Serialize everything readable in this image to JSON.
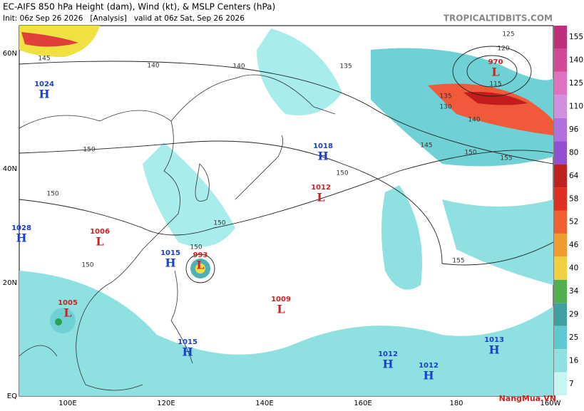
{
  "header": {
    "title": "EC-AIFS 850 hPa Height (dam), Wind (kt), & MSLP Centers (hPa)",
    "subtitle": "Init: 06z Sep 26 2026   [Analysis]   valid at 06z Sat, Sep 26 2026",
    "brand": "TROPICALTIDBITS.COM"
  },
  "lat_labels": [
    "60N",
    "40N",
    "20N",
    "EQ"
  ],
  "lon_labels": [
    "100E",
    "120E",
    "140E",
    "160E",
    "180",
    "160W"
  ],
  "colorbar_labels": [
    "155",
    "140",
    "125",
    "110",
    "96",
    "80",
    "64",
    "58",
    "52",
    "46",
    "40",
    "34",
    "29",
    "25",
    "16",
    "7"
  ],
  "contour_labels": [
    "145",
    "140",
    "140",
    "135",
    "125",
    "120",
    "115",
    "130",
    "135",
    "140",
    "145",
    "150",
    "155",
    "150",
    "150",
    "150",
    "150",
    "150",
    "155",
    "150"
  ],
  "centers": [
    {
      "pressure": "1024",
      "letter": "H"
    },
    {
      "pressure": "1028",
      "letter": "H"
    },
    {
      "pressure": "1006",
      "letter": "L"
    },
    {
      "pressure": "1015",
      "letter": "H"
    },
    {
      "pressure": "993",
      "letter": "L"
    },
    {
      "pressure": "1005",
      "letter": "L"
    },
    {
      "pressure": "1015",
      "letter": "H"
    },
    {
      "pressure": "1018",
      "letter": "H"
    },
    {
      "pressure": "1012",
      "letter": "L"
    },
    {
      "pressure": "1009",
      "letter": "L"
    },
    {
      "pressure": "1012",
      "letter": "H"
    },
    {
      "pressure": "1012",
      "letter": "H"
    },
    {
      "pressure": "1013",
      "letter": "H"
    },
    {
      "pressure": "970",
      "letter": "L"
    }
  ],
  "watermark": "NangMua.VN"
}
